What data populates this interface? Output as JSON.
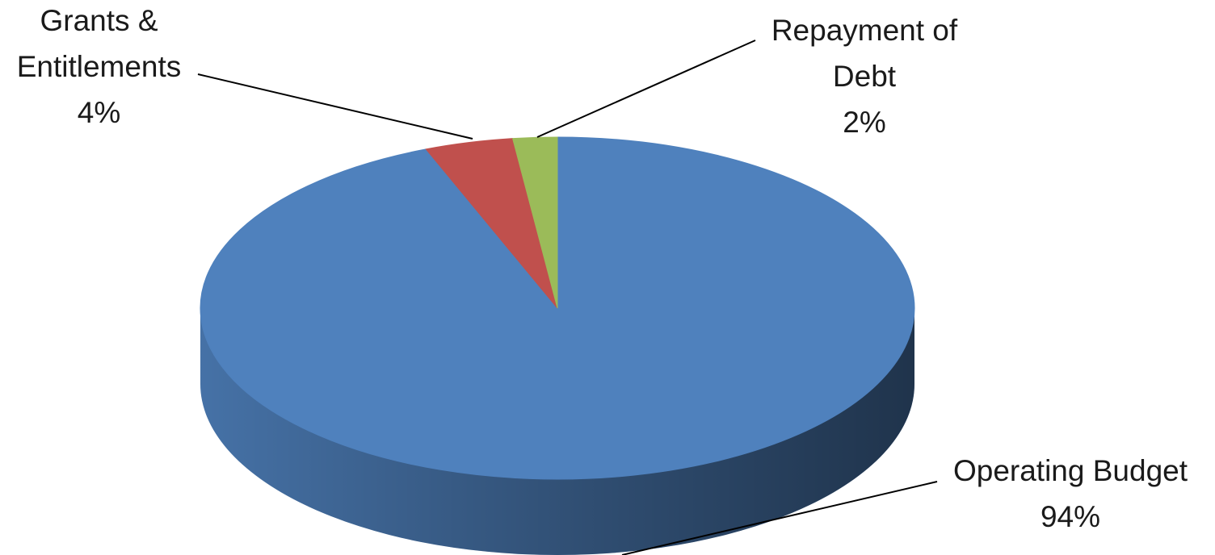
{
  "chart_data": {
    "type": "pie",
    "categories": [
      "Operating Budget",
      "Grants & Entitlements",
      "Repayment of Debt"
    ],
    "values": [
      94,
      4,
      2
    ],
    "value_labels": [
      "94%",
      "4%",
      "2%"
    ],
    "colors": [
      "#4f81bd",
      "#c0504d",
      "#9bbb59"
    ]
  }
}
